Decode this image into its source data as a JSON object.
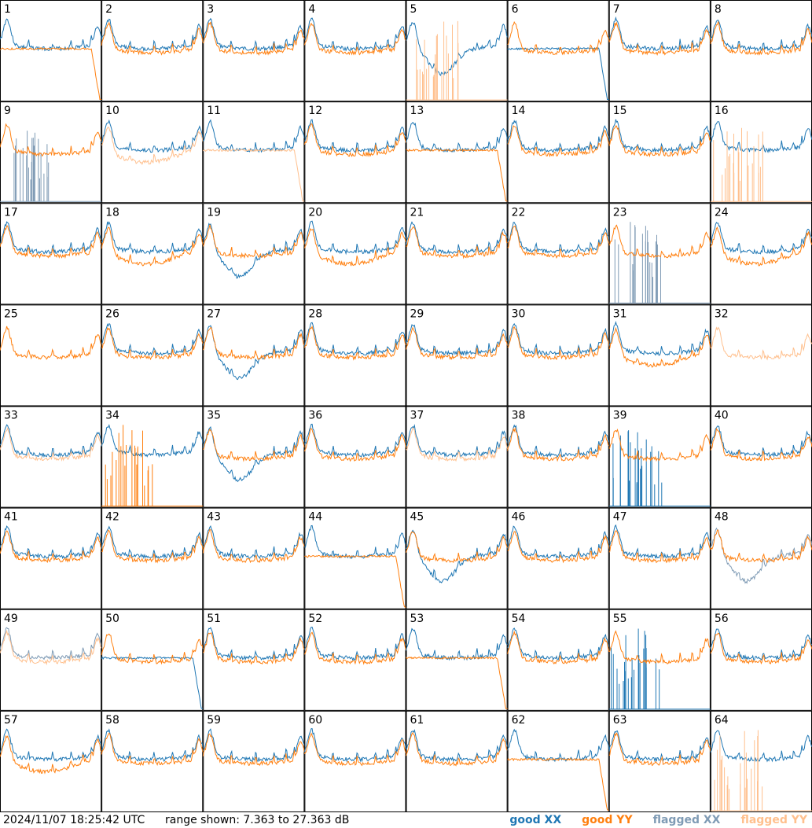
{
  "timestamp": "2024/11/07 18:25:42 UTC",
  "range_text": "range shown: 7.363 to 27.363 dB",
  "legend": [
    {
      "name": "good XX",
      "color": "#1f77b4",
      "key": "good_xx"
    },
    {
      "name": "good YY",
      "color": "#ff7f0e",
      "key": "good_yy"
    },
    {
      "name": "flagged XX",
      "color": "#7f9bb5",
      "key": "flagged_xx"
    },
    {
      "name": "flagged YY",
      "color": "#ffc08e",
      "key": "flagged_yy"
    }
  ],
  "colors": {
    "good_xx": "#1f77b4",
    "good_yy": "#ff7f0e",
    "flagged_xx": "#7f9bb5",
    "flagged_yy": "#ffc08e"
  },
  "chart_data": {
    "type": "line",
    "grid_rows": 8,
    "grid_cols": 8,
    "ylim": [
      7.363,
      27.363
    ],
    "panels": [
      {
        "label": "1",
        "xx": "typ",
        "yy": "drop",
        "xxf": false,
        "yyf": false
      },
      {
        "label": "2",
        "xx": "typ",
        "yy": "typ",
        "xxf": false,
        "yyf": false
      },
      {
        "label": "3",
        "xx": "typ",
        "yy": "typ",
        "xxf": false,
        "yyf": false
      },
      {
        "label": "4",
        "xx": "typ",
        "yy": "typ",
        "xxf": false,
        "yyf": false
      },
      {
        "label": "5",
        "xx": "dip",
        "yy": "spikes",
        "xxf": false,
        "yyf": true
      },
      {
        "label": "6",
        "xx": "drop",
        "yy": "typ",
        "xxf": false,
        "yyf": false
      },
      {
        "label": "7",
        "xx": "typ",
        "yy": "typ",
        "xxf": false,
        "yyf": false
      },
      {
        "label": "8",
        "xx": "typ",
        "yy": "typ",
        "xxf": false,
        "yyf": false
      },
      {
        "label": "9",
        "xx": "spikes",
        "yy": "typ",
        "xxf": true,
        "yyf": false
      },
      {
        "label": "10",
        "xx": "typ",
        "yy": "low",
        "xxf": false,
        "yyf": true
      },
      {
        "label": "11",
        "xx": "typ",
        "yy": "drop",
        "xxf": false,
        "yyf": true
      },
      {
        "label": "12",
        "xx": "typ",
        "yy": "typ",
        "xxf": false,
        "yyf": false
      },
      {
        "label": "13",
        "xx": "typ",
        "yy": "drop",
        "xxf": false,
        "yyf": false
      },
      {
        "label": "14",
        "xx": "typ",
        "yy": "typ",
        "xxf": false,
        "yyf": false
      },
      {
        "label": "15",
        "xx": "typ",
        "yy": "typ",
        "xxf": false,
        "yyf": false
      },
      {
        "label": "16",
        "xx": "typ",
        "yy": "spikes",
        "xxf": false,
        "yyf": true
      },
      {
        "label": "17",
        "xx": "typ",
        "yy": "typ",
        "xxf": false,
        "yyf": false
      },
      {
        "label": "18",
        "xx": "typ",
        "yy": "low",
        "xxf": false,
        "yyf": false
      },
      {
        "label": "19",
        "xx": "dip",
        "yy": "typ",
        "xxf": false,
        "yyf": false
      },
      {
        "label": "20",
        "xx": "typ",
        "yy": "low",
        "xxf": false,
        "yyf": false
      },
      {
        "label": "21",
        "xx": "typ",
        "yy": "typ",
        "xxf": false,
        "yyf": false
      },
      {
        "label": "22",
        "xx": "typ",
        "yy": "typ",
        "xxf": false,
        "yyf": false
      },
      {
        "label": "23",
        "xx": "spikes",
        "yy": "typ",
        "xxf": true,
        "yyf": false
      },
      {
        "label": "24",
        "xx": "typ",
        "yy": "low",
        "xxf": false,
        "yyf": false
      },
      {
        "label": "25",
        "xx": "none",
        "yy": "typ",
        "xxf": false,
        "yyf": false
      },
      {
        "label": "26",
        "xx": "typ",
        "yy": "typ",
        "xxf": false,
        "yyf": false
      },
      {
        "label": "27",
        "xx": "dip",
        "yy": "typ",
        "xxf": false,
        "yyf": false
      },
      {
        "label": "28",
        "xx": "typ",
        "yy": "typ",
        "xxf": false,
        "yyf": false
      },
      {
        "label": "29",
        "xx": "typ",
        "yy": "typ",
        "xxf": false,
        "yyf": false
      },
      {
        "label": "30",
        "xx": "typ",
        "yy": "typ",
        "xxf": false,
        "yyf": false
      },
      {
        "label": "31",
        "xx": "typ",
        "yy": "low",
        "xxf": false,
        "yyf": false
      },
      {
        "label": "32",
        "xx": "none",
        "yy": "typ",
        "xxf": false,
        "yyf": true
      },
      {
        "label": "33",
        "xx": "typ",
        "yy": "typ",
        "xxf": false,
        "yyf": true
      },
      {
        "label": "34",
        "xx": "typ",
        "yy": "spikes",
        "xxf": false,
        "yyf": false
      },
      {
        "label": "35",
        "xx": "dip",
        "yy": "typ",
        "xxf": false,
        "yyf": false
      },
      {
        "label": "36",
        "xx": "typ",
        "yy": "typ",
        "xxf": false,
        "yyf": false
      },
      {
        "label": "37",
        "xx": "typ",
        "yy": "typ",
        "xxf": false,
        "yyf": true
      },
      {
        "label": "38",
        "xx": "typ",
        "yy": "typ",
        "xxf": false,
        "yyf": false
      },
      {
        "label": "39",
        "xx": "spikes",
        "yy": "typ",
        "xxf": false,
        "yyf": false
      },
      {
        "label": "40",
        "xx": "typ",
        "yy": "typ",
        "xxf": false,
        "yyf": false
      },
      {
        "label": "41",
        "xx": "typ",
        "yy": "typ",
        "xxf": false,
        "yyf": false
      },
      {
        "label": "42",
        "xx": "typ",
        "yy": "typ",
        "xxf": false,
        "yyf": false
      },
      {
        "label": "43",
        "xx": "typ",
        "yy": "typ",
        "xxf": false,
        "yyf": false
      },
      {
        "label": "44",
        "xx": "typ",
        "yy": "drop",
        "xxf": false,
        "yyf": false
      },
      {
        "label": "45",
        "xx": "dip",
        "yy": "typ",
        "xxf": false,
        "yyf": false
      },
      {
        "label": "46",
        "xx": "typ",
        "yy": "typ",
        "xxf": false,
        "yyf": false
      },
      {
        "label": "47",
        "xx": "typ",
        "yy": "typ",
        "xxf": false,
        "yyf": false
      },
      {
        "label": "48",
        "xx": "dip",
        "yy": "typ",
        "xxf": true,
        "yyf": false
      },
      {
        "label": "49",
        "xx": "typ",
        "yy": "typ",
        "xxf": true,
        "yyf": true
      },
      {
        "label": "50",
        "xx": "drop",
        "yy": "typ",
        "xxf": false,
        "yyf": false
      },
      {
        "label": "51",
        "xx": "typ",
        "yy": "typ",
        "xxf": false,
        "yyf": false
      },
      {
        "label": "52",
        "xx": "typ",
        "yy": "typ",
        "xxf": false,
        "yyf": false
      },
      {
        "label": "53",
        "xx": "typ",
        "yy": "drop",
        "xxf": false,
        "yyf": false
      },
      {
        "label": "54",
        "xx": "typ",
        "yy": "typ",
        "xxf": false,
        "yyf": false
      },
      {
        "label": "55",
        "xx": "spikes",
        "yy": "typ",
        "xxf": false,
        "yyf": false
      },
      {
        "label": "56",
        "xx": "typ",
        "yy": "typ",
        "xxf": false,
        "yyf": false
      },
      {
        "label": "57",
        "xx": "typ",
        "yy": "low",
        "xxf": false,
        "yyf": false
      },
      {
        "label": "58",
        "xx": "typ",
        "yy": "typ",
        "xxf": false,
        "yyf": false
      },
      {
        "label": "59",
        "xx": "typ",
        "yy": "typ",
        "xxf": false,
        "yyf": false
      },
      {
        "label": "60",
        "xx": "typ",
        "yy": "typ",
        "xxf": false,
        "yyf": false
      },
      {
        "label": "61",
        "xx": "typ",
        "yy": "typ",
        "xxf": false,
        "yyf": false
      },
      {
        "label": "62",
        "xx": "typ",
        "yy": "drop",
        "xxf": false,
        "yyf": false
      },
      {
        "label": "63",
        "xx": "typ",
        "yy": "typ",
        "xxf": false,
        "yyf": false
      },
      {
        "label": "64",
        "xx": "typ",
        "yy": "spikes",
        "xxf": false,
        "yyf": true
      }
    ]
  }
}
